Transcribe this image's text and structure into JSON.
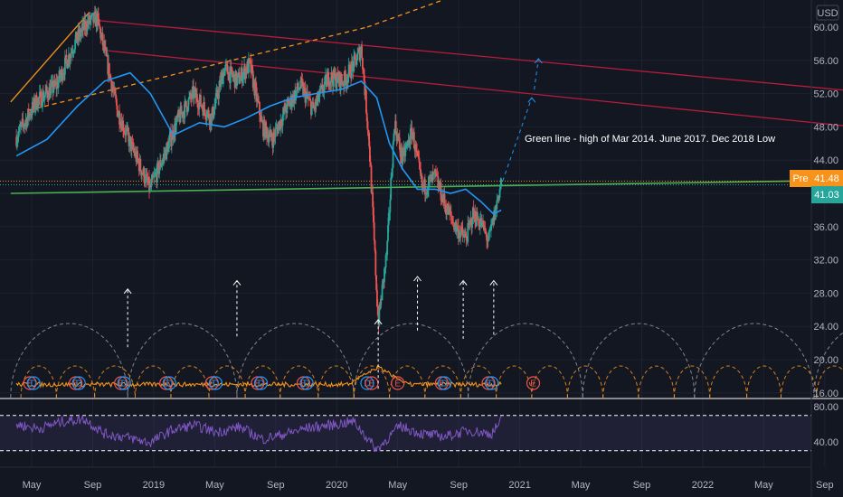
{
  "currency": "USD",
  "annotation": "Green line - high of Mar 2014. June 2017. Dec 2018 Low",
  "badges": {
    "pre_label": "Pre",
    "pre_value": "41.48",
    "last_value": "41.03"
  },
  "colors": {
    "background": "#131722",
    "grid": "#1e2230",
    "up": "#26a69a",
    "down": "#ef5350",
    "sma": "#2196f3",
    "trend_red": "#b71c3c",
    "trend_orange": "#f7931a",
    "support_green": "#4caf50",
    "pre_badge": "#f7931a",
    "last_badge": "#26a69a",
    "rsi": "#7e57c2",
    "volume_line": "#f7931a",
    "cycle_white": "#9598a1",
    "cycle_orange": "#f7931a",
    "earnings": "#ef5350",
    "dividends": "#2196f3"
  },
  "chart_data": [
    {
      "type": "line",
      "name": "price",
      "currency": "USD",
      "scale": "linear",
      "ylim": [
        13.5,
        61.5
      ],
      "ytick_labels": [
        "60.00",
        "56.00",
        "52.00",
        "48.00",
        "44.00",
        "40.00",
        "36.00",
        "32.00",
        "28.00",
        "24.00",
        "20.00",
        "16.00"
      ],
      "x_tick_labels": [
        "May",
        "Sep",
        "2019",
        "May",
        "Sep",
        "2020",
        "May",
        "Sep",
        "2021",
        "May",
        "Sep",
        "2022",
        "May",
        "Sep"
      ],
      "price_path": {
        "x": [
          "2018-04-01",
          "2018-05-10",
          "2018-06-20",
          "2018-07-25",
          "2018-08-20",
          "2018-09-10",
          "2018-09-25",
          "2018-10-20",
          "2018-11-15",
          "2018-12-24",
          "2019-01-25",
          "2019-02-20",
          "2019-03-20",
          "2019-04-25",
          "2019-05-20",
          "2019-06-15",
          "2019-07-10",
          "2019-08-05",
          "2019-08-25",
          "2019-09-20",
          "2019-10-20",
          "2019-11-15",
          "2019-12-15",
          "2020-01-15",
          "2020-02-05",
          "2020-02-20",
          "2020-03-05",
          "2020-03-23",
          "2020-04-10",
          "2020-04-25",
          "2020-05-10",
          "2020-05-30",
          "2020-06-20",
          "2020-07-15",
          "2020-08-05",
          "2020-08-25",
          "2020-09-15",
          "2020-09-30",
          "2020-10-15",
          "2020-10-30",
          "2020-11-10",
          "2020-11-25"
        ],
        "values": [
          46.8,
          51.0,
          53.0,
          58.0,
          60.5,
          61.0,
          57.0,
          50.0,
          46.0,
          40.5,
          45.0,
          49.0,
          52.0,
          49.0,
          55.0,
          53.5,
          55.5,
          48.0,
          46.5,
          50.0,
          53.0,
          50.0,
          54.0,
          53.5,
          55.5,
          57.5,
          46.0,
          24.5,
          33.0,
          48.5,
          44.0,
          47.5,
          40.5,
          42.0,
          38.5,
          36.0,
          34.5,
          37.5,
          36.5,
          34.2,
          37.0,
          41.5
        ]
      },
      "sma": {
        "x": [
          "2018-04-01",
          "2018-06-01",
          "2018-08-01",
          "2018-09-25",
          "2018-11-15",
          "2018-12-25",
          "2019-02-10",
          "2019-04-01",
          "2019-05-20",
          "2019-07-01",
          "2019-08-20",
          "2019-10-05",
          "2019-11-20",
          "2020-01-10",
          "2020-02-20",
          "2020-03-20",
          "2020-04-15",
          "2020-05-10",
          "2020-06-10",
          "2020-07-15",
          "2020-08-15",
          "2020-09-15",
          "2020-10-15",
          "2020-11-10",
          "2020-11-25"
        ],
        "values": [
          44.5,
          46.5,
          50.5,
          53.5,
          54.5,
          52.0,
          47.0,
          48.5,
          48.0,
          49.0,
          50.5,
          51.5,
          52.0,
          52.5,
          53.5,
          51.5,
          46.0,
          43.0,
          40.5,
          40.5,
          40.0,
          40.5,
          39.0,
          37.5,
          38.0
        ]
      },
      "trendlines": [
        {
          "name": "red-upper",
          "x": [
            "2018-09-10",
            "2022-10-31"
          ],
          "values": [
            60.8,
            52.3
          ]
        },
        {
          "name": "red-lower",
          "x": [
            "2018-09-25",
            "2022-10-31"
          ],
          "values": [
            57.2,
            48.0
          ]
        },
        {
          "name": "orange-solid",
          "x": [
            "2018-03-20",
            "2018-08-25"
          ],
          "values": [
            51.0,
            61.8
          ]
        },
        {
          "name": "orange-dashed",
          "x": [
            "2018-04-25",
            "2020-03-01"
          ],
          "values": [
            50.0,
            60.0
          ]
        },
        {
          "name": "orange-dashed-ext",
          "x": [
            "2020-03-01",
            "2020-12-05"
          ],
          "values": [
            60.0,
            66.0
          ]
        },
        {
          "name": "green-support",
          "x": [
            "2018-03-20",
            "2022-10-31"
          ],
          "values": [
            40.0,
            41.6
          ]
        },
        {
          "name": "projection-1",
          "x": [
            "2020-11-28",
            "2021-01-25"
          ],
          "values": [
            41.5,
            51.5
          ]
        },
        {
          "name": "projection-2",
          "x": [
            "2021-01-30",
            "2021-02-08"
          ],
          "values": [
            52.5,
            56.2
          ]
        }
      ],
      "hlines": [
        {
          "name": "pre-level",
          "value": 41.48
        },
        {
          "name": "last-level",
          "value": 41.03
        }
      ],
      "cycle_markers": [
        {
          "x": "2018-11-10",
          "from": 21.5,
          "to": 28.5
        },
        {
          "x": "2019-06-15",
          "from": 22.8,
          "to": 29.5
        },
        {
          "x": "2020-03-23",
          "from": 16.5,
          "to": 24.8
        },
        {
          "x": "2020-06-10",
          "from": 23.5,
          "to": 30.0
        },
        {
          "x": "2020-09-10",
          "from": 22.5,
          "to": 29.5
        },
        {
          "x": "2020-11-10",
          "from": 23.0,
          "to": 29.5
        }
      ],
      "large_cycle_arcs": [
        {
          "from": "2018-03-20",
          "to": "2018-11-10"
        },
        {
          "from": "2018-11-10",
          "to": "2019-06-15"
        },
        {
          "from": "2019-06-15",
          "to": "2020-02-05"
        },
        {
          "from": "2020-02-05",
          "to": "2020-09-20"
        },
        {
          "from": "2020-09-20",
          "to": "2021-05-05"
        },
        {
          "from": "2021-05-05",
          "to": "2021-12-15"
        },
        {
          "from": "2021-12-15",
          "to": "2022-08-10"
        },
        {
          "from": "2022-08-10",
          "to": "2023-03-20"
        }
      ],
      "small_cycle_arcs": [
        {
          "from": "2018-04-10",
          "to": "2018-06-20"
        },
        {
          "from": "2018-06-20",
          "to": "2018-09-05"
        },
        {
          "from": "2018-09-05",
          "to": "2018-11-25"
        },
        {
          "from": "2018-11-25",
          "to": "2019-02-05"
        },
        {
          "from": "2019-02-05",
          "to": "2019-04-20"
        },
        {
          "from": "2019-04-20",
          "to": "2019-07-01"
        },
        {
          "from": "2019-07-01",
          "to": "2019-09-10"
        },
        {
          "from": "2019-09-10",
          "to": "2019-11-25"
        },
        {
          "from": "2019-11-25",
          "to": "2020-02-05"
        },
        {
          "from": "2020-02-05",
          "to": "2020-04-15"
        },
        {
          "from": "2020-04-15",
          "to": "2020-06-25"
        },
        {
          "from": "2020-06-25",
          "to": "2020-09-05"
        },
        {
          "from": "2020-09-05",
          "to": "2020-11-15"
        },
        {
          "from": "2020-11-15",
          "to": "2021-01-25"
        },
        {
          "from": "2021-01-25",
          "to": "2021-04-05"
        },
        {
          "from": "2021-04-05",
          "to": "2021-06-15"
        },
        {
          "from": "2021-06-15",
          "to": "2021-08-25"
        },
        {
          "from": "2021-08-25",
          "to": "2021-11-05"
        },
        {
          "from": "2021-11-05",
          "to": "2022-01-15"
        },
        {
          "from": "2022-01-15",
          "to": "2022-03-28"
        },
        {
          "from": "2022-03-28",
          "to": "2022-06-05"
        },
        {
          "from": "2022-06-05",
          "to": "2022-08-15"
        },
        {
          "from": "2022-08-15",
          "to": "2022-10-25"
        }
      ],
      "events": [
        {
          "type": "E",
          "x": "2018-04-28"
        },
        {
          "type": "D",
          "x": "2018-05-05"
        },
        {
          "type": "E",
          "x": "2018-07-28"
        },
        {
          "type": "D",
          "x": "2018-08-04"
        },
        {
          "type": "E",
          "x": "2018-10-27"
        },
        {
          "type": "D",
          "x": "2018-11-03"
        },
        {
          "type": "E",
          "x": "2019-01-26"
        },
        {
          "type": "D",
          "x": "2019-02-02"
        },
        {
          "type": "E",
          "x": "2019-04-26"
        },
        {
          "type": "D",
          "x": "2019-05-03"
        },
        {
          "type": "E",
          "x": "2019-07-26"
        },
        {
          "type": "D",
          "x": "2019-08-02"
        },
        {
          "type": "E",
          "x": "2019-10-26"
        },
        {
          "type": "D",
          "x": "2019-11-02"
        },
        {
          "type": "D",
          "x": "2020-03-01"
        },
        {
          "type": "E",
          "x": "2020-03-10"
        },
        {
          "type": "E",
          "x": "2020-05-01"
        },
        {
          "type": "E",
          "x": "2020-07-28"
        },
        {
          "type": "D",
          "x": "2020-08-03"
        },
        {
          "type": "E",
          "x": "2020-10-30"
        },
        {
          "type": "D",
          "x": "2020-11-06"
        },
        {
          "type": "E",
          "x": "2021-01-28"
        }
      ]
    },
    {
      "type": "line",
      "name": "oscillator",
      "ylim": [
        28,
        84
      ],
      "ytick_labels": [
        "80.00",
        "40.00"
      ],
      "bands": [
        70,
        30
      ],
      "x": [
        "2018-04-01",
        "2018-05-15",
        "2018-07-01",
        "2018-08-15",
        "2018-09-25",
        "2018-11-10",
        "2018-12-24",
        "2019-02-05",
        "2019-03-20",
        "2019-05-05",
        "2019-06-20",
        "2019-08-05",
        "2019-09-20",
        "2019-11-05",
        "2019-12-20",
        "2020-02-05",
        "2020-03-20",
        "2020-05-05",
        "2020-06-20",
        "2020-08-05",
        "2020-09-20",
        "2020-11-05",
        "2020-11-25"
      ],
      "values": [
        60,
        55,
        63,
        66,
        49,
        45,
        39,
        53,
        59,
        51,
        57,
        43,
        49,
        56,
        59,
        63,
        31,
        58,
        49,
        46,
        53,
        49,
        64
      ]
    }
  ]
}
